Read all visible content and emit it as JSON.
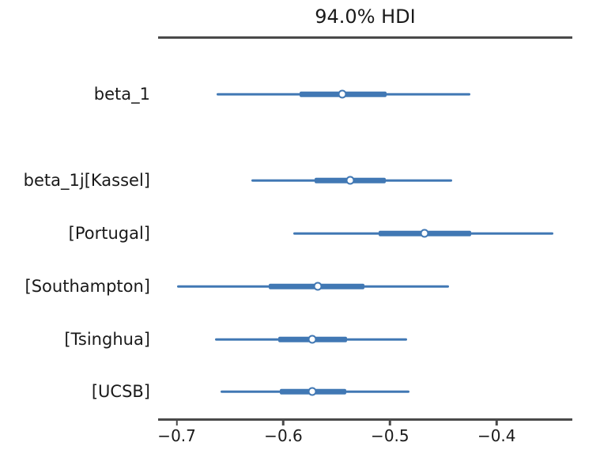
{
  "chart_data": {
    "type": "forest",
    "title": "94.0% HDI",
    "hdi_probability": "94.0%",
    "legend_position": "none",
    "grid": false,
    "colors": {
      "interval": "#4178b4",
      "marker_fill": "#ffffff",
      "axis": "#4a4a4a",
      "text": "#1a1a1a",
      "background": "#ffffff"
    },
    "xlim": [
      -0.7175,
      -0.329
    ],
    "xticks": [
      -0.7,
      -0.6,
      -0.5,
      -0.4
    ],
    "xtick_labels": [
      "−0.7",
      "−0.6",
      "−0.5",
      "−0.4"
    ],
    "xlabel": "",
    "ylabel": "",
    "rows": [
      {
        "label": "beta_1",
        "hdi_low": -0.663,
        "hdi_high": -0.425,
        "quartile_low": -0.585,
        "quartile_high": -0.503,
        "median": -0.545
      },
      {
        "label": "beta_1j[Kassel]",
        "hdi_low": -0.63,
        "hdi_high": -0.442,
        "quartile_low": -0.571,
        "quartile_high": -0.504,
        "median": -0.537
      },
      {
        "label": "[Portugal]",
        "hdi_low": -0.591,
        "hdi_high": -0.347,
        "quartile_low": -0.511,
        "quartile_high": -0.424,
        "median": -0.468
      },
      {
        "label": "[Southampton]",
        "hdi_low": -0.7,
        "hdi_high": -0.445,
        "quartile_low": -0.614,
        "quartile_high": -0.524,
        "median": -0.568
      },
      {
        "label": "[Tsinghua]",
        "hdi_low": -0.664,
        "hdi_high": -0.484,
        "quartile_low": -0.605,
        "quartile_high": -0.54,
        "median": -0.573
      },
      {
        "label": "[UCSB]",
        "hdi_low": -0.659,
        "hdi_high": -0.482,
        "quartile_low": -0.603,
        "quartile_high": -0.541,
        "median": -0.573
      }
    ]
  }
}
